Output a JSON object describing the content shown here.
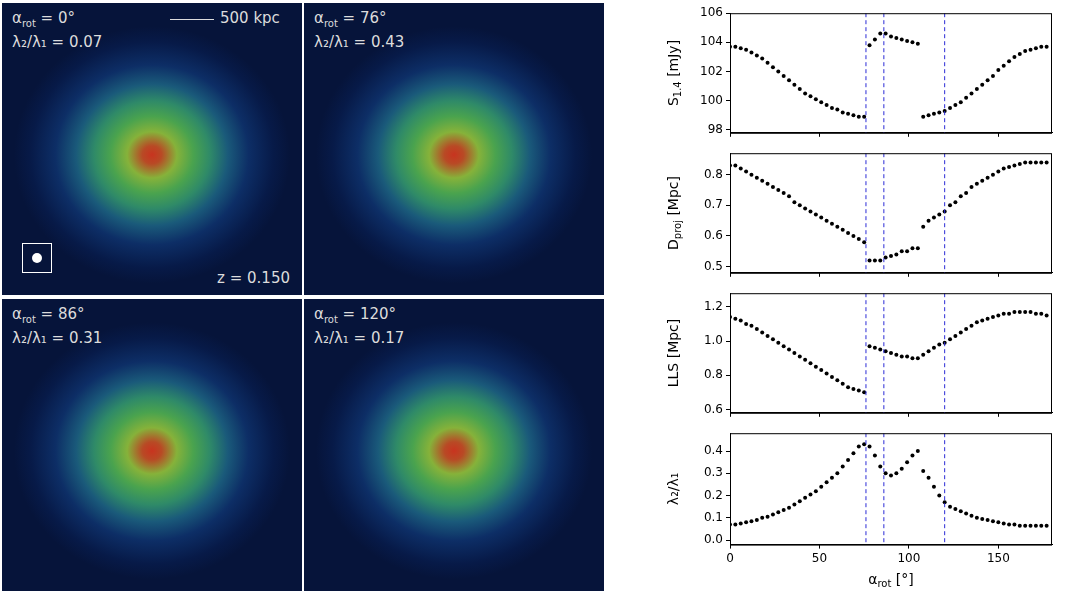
{
  "image_panels": [
    {
      "angle": {
        "text": "α",
        "sub": "rot",
        "after": " = 0°"
      },
      "ratio": "λ₂/λ₁ = 0.07",
      "scale_bar": "500 kpc",
      "redshift": "z = 0.150"
    },
    {
      "angle": {
        "text": "α",
        "sub": "rot",
        "after": " = 76°"
      },
      "ratio": "λ₂/λ₁ = 0.43"
    },
    {
      "angle": {
        "text": "α",
        "sub": "rot",
        "after": " = 86°"
      },
      "ratio": "λ₂/λ₁ = 0.31"
    },
    {
      "angle": {
        "text": "α",
        "sub": "rot",
        "after": " = 120°"
      },
      "ratio": "λ₂/λ₁ = 0.17"
    }
  ],
  "chart_data": [
    {
      "type": "scatter",
      "ylabel": {
        "text": "S",
        "sub": "1.4",
        "after": " [mJy]"
      },
      "x": [
        0,
        3,
        6,
        9,
        12,
        15,
        18,
        21,
        24,
        27,
        30,
        33,
        36,
        39,
        42,
        45,
        48,
        51,
        54,
        57,
        60,
        63,
        66,
        69,
        72,
        75,
        78,
        81,
        84,
        87,
        90,
        93,
        96,
        99,
        102,
        105,
        108,
        111,
        114,
        117,
        120,
        123,
        126,
        129,
        132,
        135,
        138,
        141,
        144,
        147,
        150,
        153,
        156,
        159,
        162,
        165,
        168,
        171,
        174,
        177
      ],
      "values": [
        103.7,
        103.7,
        103.6,
        103.5,
        103.3,
        103.1,
        102.9,
        102.6,
        102.3,
        102.0,
        101.7,
        101.4,
        101.1,
        100.8,
        100.5,
        100.3,
        100.1,
        99.9,
        99.7,
        99.5,
        99.4,
        99.2,
        99.1,
        99.0,
        98.9,
        98.9,
        103.8,
        104.2,
        104.6,
        104.6,
        104.4,
        104.3,
        104.2,
        104.1,
        104.0,
        103.9,
        98.9,
        99.0,
        99.1,
        99.2,
        99.3,
        99.5,
        99.7,
        99.9,
        100.2,
        100.5,
        100.8,
        101.1,
        101.4,
        101.7,
        102.1,
        102.4,
        102.7,
        103.0,
        103.2,
        103.4,
        103.5,
        103.6,
        103.7,
        103.7
      ],
      "xlim": [
        0,
        180
      ],
      "xticks": [
        0,
        50,
        100,
        150
      ],
      "ylim": [
        97.8,
        106
      ],
      "yticks": [
        98,
        100,
        102,
        104,
        106
      ],
      "vlines": [
        76,
        86,
        120
      ],
      "color": "#000000",
      "marker": "circle",
      "grid": false,
      "tick_labels": "y"
    },
    {
      "type": "scatter",
      "ylabel": {
        "text": "D",
        "sub": "proj",
        "after": " [Mpc]"
      },
      "x": [
        0,
        3,
        6,
        9,
        12,
        15,
        18,
        21,
        24,
        27,
        30,
        33,
        36,
        39,
        42,
        45,
        48,
        51,
        54,
        57,
        60,
        63,
        66,
        69,
        72,
        75,
        78,
        81,
        84,
        87,
        90,
        93,
        96,
        99,
        102,
        105,
        108,
        111,
        114,
        117,
        120,
        123,
        126,
        129,
        132,
        135,
        138,
        141,
        144,
        147,
        150,
        153,
        156,
        159,
        162,
        165,
        168,
        171,
        174,
        177
      ],
      "values": [
        0.83,
        0.83,
        0.82,
        0.81,
        0.8,
        0.79,
        0.78,
        0.77,
        0.76,
        0.75,
        0.74,
        0.73,
        0.71,
        0.7,
        0.69,
        0.68,
        0.67,
        0.66,
        0.65,
        0.64,
        0.63,
        0.62,
        0.61,
        0.6,
        0.59,
        0.58,
        0.52,
        0.52,
        0.52,
        0.53,
        0.535,
        0.54,
        0.55,
        0.55,
        0.56,
        0.56,
        0.63,
        0.65,
        0.66,
        0.67,
        0.68,
        0.7,
        0.71,
        0.73,
        0.74,
        0.76,
        0.77,
        0.78,
        0.79,
        0.8,
        0.81,
        0.82,
        0.825,
        0.83,
        0.835,
        0.84,
        0.84,
        0.84,
        0.84,
        0.84
      ],
      "xlim": [
        0,
        180
      ],
      "xticks": [
        0,
        50,
        100,
        150
      ],
      "ylim": [
        0.48,
        0.87
      ],
      "yticks": [
        0.5,
        0.6,
        0.7,
        0.8
      ],
      "vlines": [
        76,
        86,
        120
      ],
      "color": "#000000",
      "marker": "circle",
      "grid": false,
      "tick_labels": "y"
    },
    {
      "type": "scatter",
      "ylabel": {
        "text": "LLS [Mpc]"
      },
      "x": [
        0,
        3,
        6,
        9,
        12,
        15,
        18,
        21,
        24,
        27,
        30,
        33,
        36,
        39,
        42,
        45,
        48,
        51,
        54,
        57,
        60,
        63,
        66,
        69,
        72,
        75,
        78,
        81,
        84,
        87,
        90,
        93,
        96,
        99,
        102,
        105,
        108,
        111,
        114,
        117,
        120,
        123,
        126,
        129,
        132,
        135,
        138,
        141,
        144,
        147,
        150,
        153,
        156,
        159,
        162,
        165,
        168,
        171,
        174,
        177
      ],
      "values": [
        1.14,
        1.13,
        1.12,
        1.1,
        1.09,
        1.07,
        1.05,
        1.03,
        1.01,
        0.99,
        0.97,
        0.95,
        0.93,
        0.91,
        0.89,
        0.87,
        0.85,
        0.83,
        0.81,
        0.79,
        0.77,
        0.75,
        0.73,
        0.72,
        0.71,
        0.7,
        0.97,
        0.96,
        0.95,
        0.94,
        0.93,
        0.92,
        0.91,
        0.91,
        0.9,
        0.9,
        0.92,
        0.94,
        0.96,
        0.98,
        0.99,
        1.01,
        1.03,
        1.05,
        1.07,
        1.09,
        1.11,
        1.12,
        1.13,
        1.14,
        1.15,
        1.16,
        1.16,
        1.17,
        1.17,
        1.17,
        1.17,
        1.16,
        1.16,
        1.15
      ],
      "xlim": [
        0,
        180
      ],
      "xticks": [
        0,
        50,
        100,
        150
      ],
      "ylim": [
        0.58,
        1.28
      ],
      "yticks": [
        0.6,
        0.8,
        {
          "value": 1.0,
          "label": "1.0"
        },
        1.2
      ],
      "vlines": [
        76,
        86,
        120
      ],
      "color": "#000000",
      "marker": "circle",
      "grid": false,
      "tick_labels": "y"
    },
    {
      "type": "scatter",
      "ylabel": {
        "text": "λ₂/λ₁"
      },
      "xlabel": {
        "text": "α",
        "sub": "rot",
        "after": " [°]"
      },
      "x": [
        0,
        3,
        6,
        9,
        12,
        15,
        18,
        21,
        24,
        27,
        30,
        33,
        36,
        39,
        42,
        45,
        48,
        51,
        54,
        57,
        60,
        63,
        66,
        69,
        72,
        75,
        78,
        81,
        84,
        87,
        90,
        93,
        96,
        99,
        102,
        105,
        108,
        111,
        114,
        117,
        120,
        123,
        126,
        129,
        132,
        135,
        138,
        141,
        144,
        147,
        150,
        153,
        156,
        159,
        162,
        165,
        168,
        171,
        174,
        177
      ],
      "values": [
        0.07,
        0.07,
        0.075,
        0.08,
        0.085,
        0.09,
        0.1,
        0.105,
        0.115,
        0.125,
        0.135,
        0.145,
        0.16,
        0.175,
        0.19,
        0.205,
        0.22,
        0.24,
        0.26,
        0.28,
        0.3,
        0.33,
        0.36,
        0.39,
        0.42,
        0.43,
        0.42,
        0.38,
        0.33,
        0.3,
        0.29,
        0.3,
        0.32,
        0.35,
        0.38,
        0.4,
        0.31,
        0.28,
        0.24,
        0.2,
        0.17,
        0.15,
        0.14,
        0.13,
        0.12,
        0.11,
        0.1,
        0.095,
        0.09,
        0.085,
        0.08,
        0.075,
        0.07,
        0.07,
        0.065,
        0.065,
        0.065,
        0.065,
        0.065,
        0.065
      ],
      "xlim": [
        0,
        180
      ],
      "xticks": [
        0,
        50,
        100,
        150
      ],
      "ylim": [
        -0.02,
        0.48
      ],
      "yticks": [
        {
          "value": 0,
          "label": "0.0"
        },
        0.1,
        0.2,
        0.3,
        0.4
      ],
      "vlines": [
        76,
        86,
        120
      ],
      "color": "#000000",
      "marker": "circle",
      "grid": false
    }
  ]
}
